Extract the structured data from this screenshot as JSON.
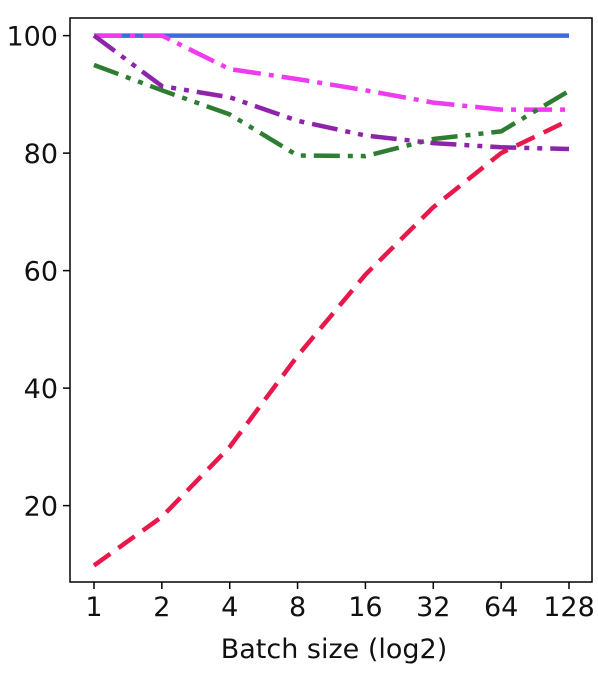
{
  "chart_data": {
    "type": "line",
    "xlabel": "Batch size (log2)",
    "ylabel": "",
    "x": [
      1,
      2,
      4,
      8,
      16,
      32,
      64,
      128
    ],
    "x_tick_labels": [
      "1",
      "2",
      "4",
      "8",
      "16",
      "32",
      "64",
      "128"
    ],
    "x_scale": "log2",
    "y_ticks": [
      20,
      40,
      60,
      80,
      100
    ],
    "y_tick_labels": [
      "20",
      "40",
      "60",
      "80",
      "100"
    ],
    "ylim": [
      7,
      103
    ],
    "grid": false,
    "series": [
      {
        "color": "#4169E1",
        "dash": "solid",
        "values": [
          100,
          100,
          100,
          100,
          100,
          100,
          100,
          100
        ]
      },
      {
        "color": "#EE3BEE",
        "dash": "dashdot",
        "values": [
          100,
          100,
          94.3,
          92.6,
          90.7,
          88.6,
          87.4,
          87.4
        ]
      },
      {
        "color": "#2E7D32",
        "dash": "dashdotdot",
        "values": [
          95,
          90.7,
          86.6,
          79.6,
          79.5,
          82.4,
          83.7,
          90.6
        ]
      },
      {
        "color": "#8E24AA",
        "dash": "dashdotdot",
        "values": [
          100,
          91.4,
          89.5,
          85.5,
          83,
          81.7,
          81,
          80.7
        ]
      },
      {
        "color": "#E8194A",
        "dash": "dashed",
        "values": [
          9.8,
          18.1,
          30,
          45.5,
          59.3,
          70.8,
          80,
          85.6
        ]
      }
    ]
  }
}
